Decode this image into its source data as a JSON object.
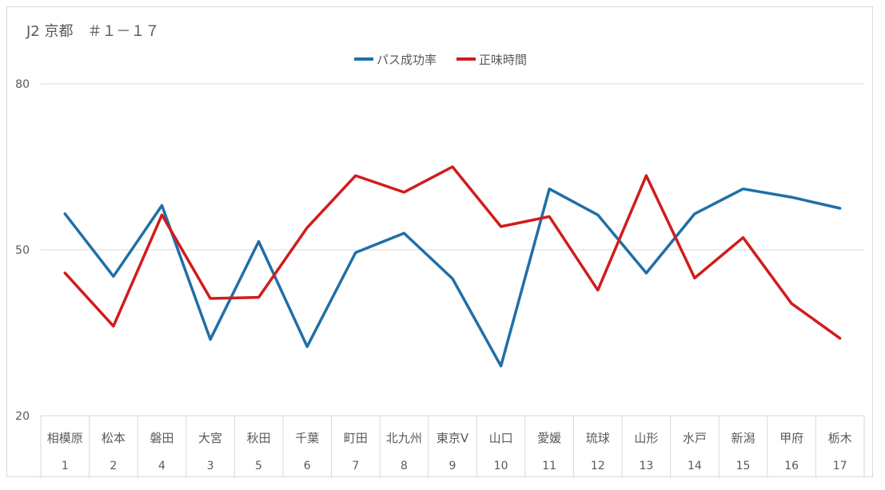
{
  "chart_data": {
    "type": "line",
    "title": "J2 京都　＃１－１７",
    "categories": [
      "相模原",
      "松本",
      "磐田",
      "大宮",
      "秋田",
      "千葉",
      "町田",
      "北九州",
      "東京V",
      "山口",
      "愛媛",
      "琉球",
      "山形",
      "水戸",
      "新潟",
      "甲府",
      "栃木"
    ],
    "sub_categories": [
      "1",
      "2",
      "4",
      "3",
      "5",
      "6",
      "7",
      "8",
      "9",
      "10",
      "11",
      "12",
      "13",
      "14",
      "15",
      "16",
      "17"
    ],
    "ylim": [
      20,
      80
    ],
    "yticks": [
      "20",
      "50",
      "80"
    ],
    "grid": true,
    "legend_position": "top-center",
    "series": [
      {
        "name": "パス成功率",
        "color": "#1f6fa8",
        "values": [
          56.5,
          45.2,
          58.0,
          33.8,
          51.5,
          32.5,
          49.5,
          53.0,
          44.8,
          29.0,
          61.0,
          56.3,
          45.8,
          56.5,
          61.0,
          59.5,
          57.5
        ]
      },
      {
        "name": "正味時間",
        "color": "#d01c1c",
        "values": [
          45.8,
          36.2,
          56.3,
          41.2,
          41.4,
          54.0,
          63.4,
          60.4,
          65.0,
          54.2,
          56.0,
          42.7,
          63.4,
          44.9,
          52.2,
          40.3,
          34.0
        ]
      }
    ]
  }
}
